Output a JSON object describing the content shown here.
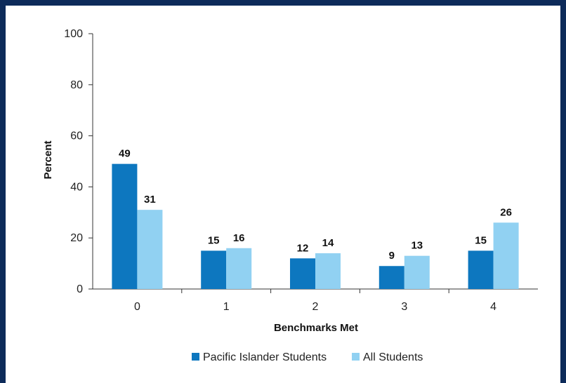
{
  "chart_data": {
    "type": "bar",
    "categories": [
      "0",
      "1",
      "2",
      "3",
      "4"
    ],
    "series": [
      {
        "name": "Pacific Islander Students",
        "values": [
          49,
          15,
          12,
          9,
          15
        ],
        "color": "#0d77bf"
      },
      {
        "name": "All Students",
        "values": [
          31,
          16,
          14,
          13,
          26
        ],
        "color": "#91d1f2"
      }
    ],
    "xlabel": "Benchmarks Met",
    "ylabel": "Percent",
    "ylim": [
      0,
      100
    ],
    "yticks": [
      "0",
      "20",
      "40",
      "60",
      "80",
      "100"
    ],
    "grid": false,
    "legend_position": "bottom"
  },
  "colors": {
    "frame": "#0d2b5a",
    "axis": "#333333"
  }
}
